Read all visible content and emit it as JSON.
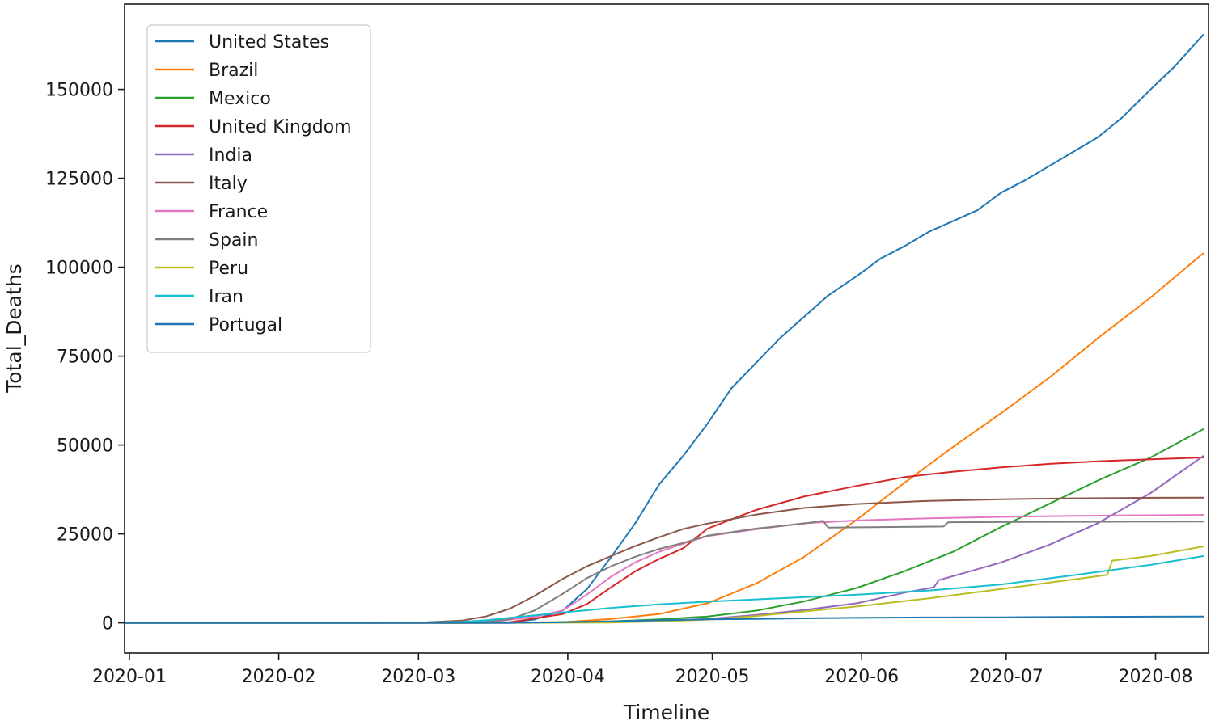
{
  "chart_data": {
    "type": "line",
    "title": "",
    "xlabel": "Timeline",
    "ylabel": "Total_Deaths",
    "xlim": [
      "2019-12-31",
      "2020-08-12"
    ],
    "ylim": [
      -8500,
      174000
    ],
    "x_ticks": [
      "2020-01-01",
      "2020-02-01",
      "2020-03-01",
      "2020-04-01",
      "2020-05-01",
      "2020-06-01",
      "2020-07-01",
      "2020-08-01"
    ],
    "x_tick_labels": [
      "2020-01",
      "2020-02",
      "2020-03",
      "2020-04",
      "2020-05",
      "2020-06",
      "2020-07",
      "2020-08"
    ],
    "y_ticks": [
      0,
      25000,
      50000,
      75000,
      100000,
      125000,
      150000
    ],
    "y_tick_labels": [
      "0",
      "25000",
      "50000",
      "75000",
      "100000",
      "125000",
      "150000"
    ],
    "grid": false,
    "legend_position": "top-left",
    "series": [
      {
        "name": "United States",
        "color": "#1f77b4",
        "points": [
          [
            "2019-12-31",
            0
          ],
          [
            "2020-03-01",
            0
          ],
          [
            "2020-03-20",
            200
          ],
          [
            "2020-03-25",
            900
          ],
          [
            "2020-03-31",
            3500
          ],
          [
            "2020-04-05",
            9500
          ],
          [
            "2020-04-10",
            18500
          ],
          [
            "2020-04-15",
            28000
          ],
          [
            "2020-04-20",
            39000
          ],
          [
            "2020-04-25",
            47000
          ],
          [
            "2020-04-30",
            56000
          ],
          [
            "2020-05-05",
            66000
          ],
          [
            "2020-05-10",
            73000
          ],
          [
            "2020-05-15",
            80000
          ],
          [
            "2020-05-20",
            86000
          ],
          [
            "2020-05-25",
            92000
          ],
          [
            "2020-05-31",
            97500
          ],
          [
            "2020-06-05",
            102500
          ],
          [
            "2020-06-10",
            106000
          ],
          [
            "2020-06-15",
            110000
          ],
          [
            "2020-06-20",
            113000
          ],
          [
            "2020-06-25",
            116000
          ],
          [
            "2020-06-30",
            121000
          ],
          [
            "2020-07-05",
            124500
          ],
          [
            "2020-07-10",
            128500
          ],
          [
            "2020-07-15",
            132500
          ],
          [
            "2020-07-20",
            136500
          ],
          [
            "2020-07-25",
            142000
          ],
          [
            "2020-07-31",
            150000
          ],
          [
            "2020-08-05",
            156500
          ],
          [
            "2020-08-11",
            165500
          ]
        ]
      },
      {
        "name": "Brazil",
        "color": "#ff7f0e",
        "points": [
          [
            "2019-12-31",
            0
          ],
          [
            "2020-03-15",
            0
          ],
          [
            "2020-03-31",
            200
          ],
          [
            "2020-04-10",
            1100
          ],
          [
            "2020-04-20",
            2500
          ],
          [
            "2020-04-30",
            5500
          ],
          [
            "2020-05-10",
            11000
          ],
          [
            "2020-05-20",
            18500
          ],
          [
            "2020-05-31",
            29000
          ],
          [
            "2020-06-10",
            39500
          ],
          [
            "2020-06-20",
            49500
          ],
          [
            "2020-06-30",
            59000
          ],
          [
            "2020-07-10",
            69000
          ],
          [
            "2020-07-20",
            80000
          ],
          [
            "2020-07-31",
            91500
          ],
          [
            "2020-08-11",
            104000
          ]
        ]
      },
      {
        "name": "Mexico",
        "color": "#2ca02c",
        "points": [
          [
            "2019-12-31",
            0
          ],
          [
            "2020-03-20",
            0
          ],
          [
            "2020-04-10",
            400
          ],
          [
            "2020-04-20",
            1000
          ],
          [
            "2020-04-30",
            1800
          ],
          [
            "2020-05-10",
            3400
          ],
          [
            "2020-05-20",
            6000
          ],
          [
            "2020-05-31",
            9800
          ],
          [
            "2020-06-10",
            14600
          ],
          [
            "2020-06-20",
            20000
          ],
          [
            "2020-06-30",
            27000
          ],
          [
            "2020-07-10",
            33500
          ],
          [
            "2020-07-20",
            40000
          ],
          [
            "2020-07-31",
            46500
          ],
          [
            "2020-08-11",
            54500
          ]
        ]
      },
      {
        "name": "United Kingdom",
        "color": "#d62728",
        "points": [
          [
            "2019-12-31",
            0
          ],
          [
            "2020-03-10",
            0
          ],
          [
            "2020-03-20",
            150
          ],
          [
            "2020-03-31",
            2500
          ],
          [
            "2020-04-05",
            5300
          ],
          [
            "2020-04-10",
            10000
          ],
          [
            "2020-04-15",
            14500
          ],
          [
            "2020-04-20",
            18000
          ],
          [
            "2020-04-25",
            21000
          ],
          [
            "2020-04-30",
            26500
          ],
          [
            "2020-05-10",
            31700
          ],
          [
            "2020-05-20",
            35500
          ],
          [
            "2020-05-31",
            38500
          ],
          [
            "2020-06-10",
            41000
          ],
          [
            "2020-06-20",
            42500
          ],
          [
            "2020-06-30",
            43700
          ],
          [
            "2020-07-10",
            44700
          ],
          [
            "2020-07-20",
            45400
          ],
          [
            "2020-07-31",
            46000
          ],
          [
            "2020-08-11",
            46500
          ]
        ]
      },
      {
        "name": "India",
        "color": "#9467bd",
        "points": [
          [
            "2019-12-31",
            0
          ],
          [
            "2020-03-20",
            0
          ],
          [
            "2020-04-10",
            250
          ],
          [
            "2020-04-20",
            600
          ],
          [
            "2020-04-30",
            1100
          ],
          [
            "2020-05-10",
            2200
          ],
          [
            "2020-05-20",
            3600
          ],
          [
            "2020-05-31",
            5500
          ],
          [
            "2020-06-10",
            8500
          ],
          [
            "2020-06-16",
            10000
          ],
          [
            "2020-06-17",
            12000
          ],
          [
            "2020-06-30",
            17000
          ],
          [
            "2020-07-10",
            22000
          ],
          [
            "2020-07-20",
            28000
          ],
          [
            "2020-07-31",
            36500
          ],
          [
            "2020-08-11",
            47000
          ]
        ]
      },
      {
        "name": "Italy",
        "color": "#8c564b",
        "points": [
          [
            "2019-12-31",
            0
          ],
          [
            "2020-02-20",
            0
          ],
          [
            "2020-03-01",
            50
          ],
          [
            "2020-03-10",
            630
          ],
          [
            "2020-03-15",
            1800
          ],
          [
            "2020-03-20",
            4000
          ],
          [
            "2020-03-25",
            7500
          ],
          [
            "2020-03-31",
            12400
          ],
          [
            "2020-04-05",
            15900
          ],
          [
            "2020-04-10",
            18800
          ],
          [
            "2020-04-15",
            21600
          ],
          [
            "2020-04-20",
            24100
          ],
          [
            "2020-04-25",
            26400
          ],
          [
            "2020-04-30",
            27900
          ],
          [
            "2020-05-10",
            30400
          ],
          [
            "2020-05-20",
            32300
          ],
          [
            "2020-05-31",
            33400
          ],
          [
            "2020-06-15",
            34300
          ],
          [
            "2020-06-30",
            34750
          ],
          [
            "2020-07-15",
            35000
          ],
          [
            "2020-07-31",
            35150
          ],
          [
            "2020-08-11",
            35200
          ]
        ]
      },
      {
        "name": "France",
        "color": "#e377c2",
        "points": [
          [
            "2019-12-31",
            0
          ],
          [
            "2020-03-01",
            0
          ],
          [
            "2020-03-15",
            120
          ],
          [
            "2020-03-25",
            1700
          ],
          [
            "2020-03-31",
            3500
          ],
          [
            "2020-04-05",
            8000
          ],
          [
            "2020-04-10",
            13000
          ],
          [
            "2020-04-15",
            17000
          ],
          [
            "2020-04-20",
            20000
          ],
          [
            "2020-04-25",
            22300
          ],
          [
            "2020-04-30",
            24400
          ],
          [
            "2020-05-10",
            26300
          ],
          [
            "2020-05-20",
            28000
          ],
          [
            "2020-05-31",
            28800
          ],
          [
            "2020-06-15",
            29400
          ],
          [
            "2020-06-30",
            29800
          ],
          [
            "2020-07-15",
            30100
          ],
          [
            "2020-07-31",
            30250
          ],
          [
            "2020-08-11",
            30350
          ]
        ]
      },
      {
        "name": "Spain",
        "color": "#7f7f7f",
        "points": [
          [
            "2019-12-31",
            0
          ],
          [
            "2020-03-01",
            0
          ],
          [
            "2020-03-10",
            30
          ],
          [
            "2020-03-15",
            300
          ],
          [
            "2020-03-20",
            1000
          ],
          [
            "2020-03-25",
            3400
          ],
          [
            "2020-03-31",
            8200
          ],
          [
            "2020-04-05",
            12600
          ],
          [
            "2020-04-10",
            15900
          ],
          [
            "2020-04-15",
            18600
          ],
          [
            "2020-04-20",
            20800
          ],
          [
            "2020-04-25",
            22500
          ],
          [
            "2020-04-30",
            24500
          ],
          [
            "2020-05-10",
            26500
          ],
          [
            "2020-05-20",
            27900
          ],
          [
            "2020-05-24",
            28700
          ],
          [
            "2020-05-25",
            26800
          ],
          [
            "2020-06-18",
            27100
          ],
          [
            "2020-06-19",
            28300
          ],
          [
            "2020-07-15",
            28400
          ],
          [
            "2020-08-11",
            28500
          ]
        ]
      },
      {
        "name": "Peru",
        "color": "#bcbd22",
        "points": [
          [
            "2019-12-31",
            0
          ],
          [
            "2020-03-20",
            0
          ],
          [
            "2020-04-10",
            100
          ],
          [
            "2020-04-20",
            400
          ],
          [
            "2020-04-30",
            900
          ],
          [
            "2020-05-10",
            1900
          ],
          [
            "2020-05-20",
            3200
          ],
          [
            "2020-05-31",
            4600
          ],
          [
            "2020-06-15",
            6900
          ],
          [
            "2020-06-30",
            9500
          ],
          [
            "2020-07-15",
            12200
          ],
          [
            "2020-07-22",
            13500
          ],
          [
            "2020-07-23",
            17500
          ],
          [
            "2020-07-31",
            18800
          ],
          [
            "2020-08-11",
            21500
          ]
        ]
      },
      {
        "name": "Iran",
        "color": "#17becf",
        "points": [
          [
            "2019-12-31",
            0
          ],
          [
            "2020-02-20",
            0
          ],
          [
            "2020-03-01",
            60
          ],
          [
            "2020-03-10",
            300
          ],
          [
            "2020-03-15",
            720
          ],
          [
            "2020-03-20",
            1440
          ],
          [
            "2020-03-25",
            2080
          ],
          [
            "2020-03-31",
            2900
          ],
          [
            "2020-04-10",
            4200
          ],
          [
            "2020-04-20",
            5200
          ],
          [
            "2020-04-30",
            5950
          ],
          [
            "2020-05-10",
            6600
          ],
          [
            "2020-05-20",
            7200
          ],
          [
            "2020-05-31",
            7900
          ],
          [
            "2020-06-15",
            9100
          ],
          [
            "2020-06-30",
            10800
          ],
          [
            "2020-07-15",
            13400
          ],
          [
            "2020-07-31",
            16300
          ],
          [
            "2020-08-11",
            18800
          ]
        ]
      },
      {
        "name": "Portugal",
        "color": "#1f77b4",
        "points": [
          [
            "2019-12-31",
            0
          ],
          [
            "2020-03-10",
            0
          ],
          [
            "2020-03-20",
            6
          ],
          [
            "2020-03-25",
            60
          ],
          [
            "2020-03-31",
            160
          ],
          [
            "2020-04-10",
            430
          ],
          [
            "2020-04-20",
            730
          ],
          [
            "2020-04-30",
            970
          ],
          [
            "2020-05-10",
            1120
          ],
          [
            "2020-05-20",
            1280
          ],
          [
            "2020-05-31",
            1410
          ],
          [
            "2020-06-15",
            1520
          ],
          [
            "2020-06-30",
            1570
          ],
          [
            "2020-07-15",
            1680
          ],
          [
            "2020-07-31",
            1740
          ],
          [
            "2020-08-11",
            1770
          ]
        ]
      }
    ]
  }
}
